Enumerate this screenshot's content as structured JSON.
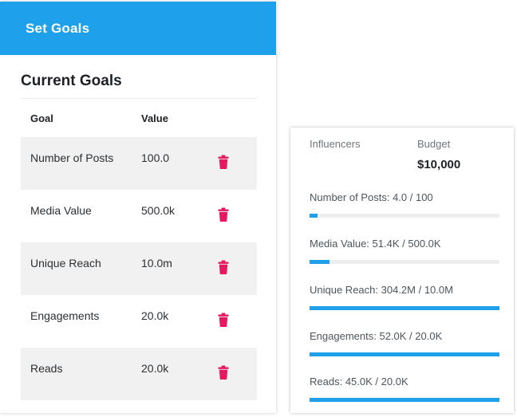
{
  "header": {
    "title": "Set Goals"
  },
  "current_goals": {
    "title": "Current Goals",
    "columns": {
      "goal": "Goal",
      "value": "Value"
    },
    "rows": [
      {
        "goal": "Number of Posts",
        "value": "100.0",
        "icon": "trash-icon"
      },
      {
        "goal": "Media Value",
        "value": "500.0k",
        "icon": "trash-icon"
      },
      {
        "goal": "Unique Reach",
        "value": "10.0m",
        "icon": "trash-icon"
      },
      {
        "goal": "Engagements",
        "value": "20.0k",
        "icon": "trash-icon"
      },
      {
        "goal": "Reads",
        "value": "20.0k",
        "icon": "trash-icon"
      }
    ]
  },
  "summary": {
    "influencers_label": "Influencers",
    "budget_label": "Budget",
    "budget_value": "$10,000"
  },
  "progress": [
    {
      "label": "Number of Posts:",
      "amount": "4.0 / 100",
      "fraction": 0.04
    },
    {
      "label": "Media Value:",
      "amount": "51.4K / 500.0K",
      "fraction": 0.103
    },
    {
      "label": "Unique Reach:",
      "amount": "304.2M / 10.0M",
      "fraction": 1.0
    },
    {
      "label": "Engagements:",
      "amount": "52.0K / 20.0K",
      "fraction": 1.0
    },
    {
      "label": "Reads:",
      "amount": "45.0K / 20.0K",
      "fraction": 1.0
    }
  ],
  "colors": {
    "accent": "#1ea0ea",
    "delete": "#e5195e",
    "row_shade": "#f1f1f1",
    "track": "#eeeeee"
  }
}
